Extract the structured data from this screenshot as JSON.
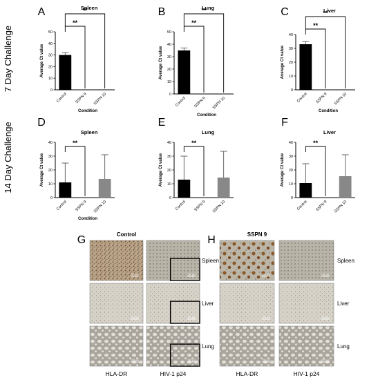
{
  "row_labels": [
    "7 Day Challenge",
    "14 Day Challenge"
  ],
  "chart_data": [
    {
      "panel": "A",
      "type": "bar",
      "title": "Spleen",
      "ylabel": "Average Ct value",
      "xlabel": "Condition",
      "categories": [
        "Control",
        "SSPN 9",
        "SSPN 10"
      ],
      "values": [
        30,
        0,
        0
      ],
      "errors": [
        2,
        0,
        0
      ],
      "ylim": [
        0,
        50
      ],
      "yticks": [
        "0",
        "10",
        "20",
        "30",
        "40",
        "50"
      ],
      "colors": [
        "#000000",
        "#000000",
        "#000000"
      ],
      "significance": [
        {
          "from": 0,
          "to": 1,
          "label": "**"
        },
        {
          "from": 0,
          "to": 2,
          "label": "**"
        }
      ]
    },
    {
      "panel": "B",
      "type": "bar",
      "title": "Lung",
      "ylabel": "Average Ct value",
      "xlabel": "Condition",
      "categories": [
        "Control",
        "SSPN 9",
        "SSPN 10"
      ],
      "values": [
        35,
        0,
        0
      ],
      "errors": [
        2,
        0,
        0
      ],
      "ylim": [
        0,
        50
      ],
      "yticks": [
        "0",
        "10",
        "20",
        "30",
        "40",
        "50"
      ],
      "colors": [
        "#000000",
        "#000000",
        "#000000"
      ],
      "significance": [
        {
          "from": 0,
          "to": 1,
          "label": "**"
        },
        {
          "from": 0,
          "to": 2,
          "label": "**"
        }
      ]
    },
    {
      "panel": "C",
      "type": "bar",
      "title": "Liver",
      "ylabel": "Average Ct value",
      "xlabel": "Condition",
      "categories": [
        "Control",
        "SSPN 9",
        "SSPN 10"
      ],
      "values": [
        33,
        0,
        0
      ],
      "errors": [
        2,
        0,
        0
      ],
      "ylim": [
        0,
        40
      ],
      "yticks": [
        "0",
        "10",
        "20",
        "30",
        "40"
      ],
      "colors": [
        "#000000",
        "#000000",
        "#000000"
      ],
      "significance": [
        {
          "from": 0,
          "to": 1,
          "label": "**"
        },
        {
          "from": 0,
          "to": 2,
          "label": "**"
        }
      ]
    },
    {
      "panel": "D",
      "type": "bar",
      "title": "Spleen",
      "ylabel": "Average Ct value",
      "xlabel": "Condition",
      "categories": [
        "Control",
        "SSPN 9",
        "SSPN 10"
      ],
      "values": [
        11,
        0,
        13.5
      ],
      "errors": [
        14,
        0,
        17.5
      ],
      "ylim": [
        0,
        40
      ],
      "yticks": [
        "0",
        "10",
        "20",
        "30",
        "40"
      ],
      "colors": [
        "#000000",
        "#000000",
        "#888888"
      ],
      "significance": [
        {
          "from": 0,
          "to": 1,
          "label": "**"
        }
      ]
    },
    {
      "panel": "E",
      "type": "bar",
      "title": "Lung",
      "ylabel": "Average Ct value",
      "xlabel": "",
      "categories": [
        "Control",
        "SSPN 9",
        "SSPN 10"
      ],
      "values": [
        13,
        0,
        14.5
      ],
      "errors": [
        17,
        0,
        19
      ],
      "ylim": [
        0,
        40
      ],
      "yticks": [
        "0",
        "10",
        "20",
        "30",
        "40"
      ],
      "colors": [
        "#000000",
        "#000000",
        "#888888"
      ],
      "significance": [
        {
          "from": 0,
          "to": 1,
          "label": "**"
        }
      ]
    },
    {
      "panel": "F",
      "type": "bar",
      "title": "Liver",
      "ylabel": "Average Ct value",
      "xlabel": "",
      "categories": [
        "Control",
        "SSPN 9",
        "SSPN 10"
      ],
      "values": [
        10.5,
        0,
        15.5
      ],
      "errors": [
        14,
        0,
        15.5
      ],
      "ylim": [
        0,
        40
      ],
      "yticks": [
        "0",
        "10",
        "20",
        "30",
        "40"
      ],
      "colors": [
        "#000000",
        "#000000",
        "#888888"
      ],
      "significance": [
        {
          "from": 0,
          "to": 1,
          "label": "**"
        }
      ]
    }
  ],
  "histology": [
    {
      "panel": "G",
      "title": "Control",
      "columns": [
        "HLA-DR",
        "HIV-1 p24"
      ],
      "rows": [
        "Spleen",
        "Liver",
        "Lung"
      ],
      "scale_label": "100 μm"
    },
    {
      "panel": "H",
      "title": "SSPN 9",
      "columns": [
        "HLA-DR",
        "HIV-1 p24"
      ],
      "rows": [
        "Spleen",
        "Liver",
        "Lung"
      ],
      "scale_label": "100 μm"
    }
  ],
  "colors": {
    "control_bar": "#000000",
    "sspn10_bar": "#888888",
    "tissue_bg": "#c9c3b4",
    "stain": "#8a5a2b"
  }
}
